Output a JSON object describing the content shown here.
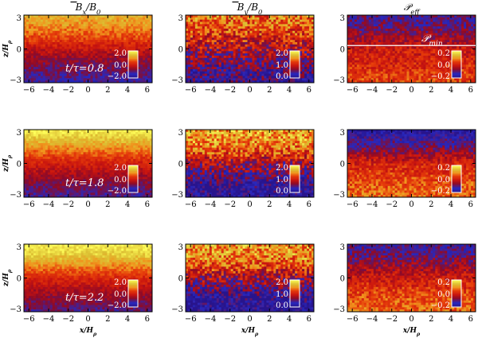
{
  "figure": {
    "column_titles": [
      "B̅x/B0",
      "B̅y/B0",
      "𝒫 eff"
    ],
    "column_titles_display": [
      {
        "main": "B",
        "sub": "x",
        "tail": "/B",
        "tailsub": "0",
        "bar": true
      },
      {
        "main": "B",
        "sub": "y",
        "tail": "/B",
        "tailsub": "0",
        "bar": true
      },
      {
        "main": "𝒫",
        "sub": "eff",
        "tail": "",
        "tailsub": "",
        "bar": false
      }
    ],
    "pmin_label": {
      "main": "𝒫",
      "sub": "min"
    },
    "xlabel": {
      "main": "x/H",
      "sub": "ρ"
    },
    "ylabel": {
      "main": "z/H",
      "sub": "ρ"
    },
    "xticks": [
      "−6",
      "−4",
      "−2",
      "0",
      "2",
      "4",
      "6"
    ],
    "yticks": [
      "3",
      "0",
      "−3"
    ],
    "time_labels": [
      "t/τ=0.8",
      "t/τ=1.8",
      "t/τ=2.2"
    ]
  },
  "chart_data": [
    {
      "type": "heatmap",
      "row": 0,
      "col": 0,
      "quantity": "Bx/B0",
      "time": 0.8,
      "xlim": [
        -6.5,
        6.5
      ],
      "ylim": [
        -3,
        3
      ],
      "colorbar": {
        "ticks": [
          "2.0",
          "0.0",
          "−2.0"
        ],
        "range": [
          -2,
          2
        ]
      },
      "profile_z": [
        -3,
        -2,
        -1,
        0,
        1,
        2,
        3
      ],
      "profile_value": [
        -1.3,
        -1.0,
        -0.7,
        -0.2,
        0.4,
        0.9,
        1.2
      ],
      "noise": 0.35
    },
    {
      "type": "heatmap",
      "row": 0,
      "col": 1,
      "quantity": "By/B0",
      "time": 0.8,
      "xlim": [
        -6.5,
        6.5
      ],
      "ylim": [
        -3,
        3
      ],
      "colorbar": {
        "ticks": [
          "2.0",
          "1.0",
          "0.0"
        ],
        "range": [
          0,
          2
        ]
      },
      "profile_z": [
        -3,
        -2,
        -1,
        0,
        1,
        2,
        3
      ],
      "profile_value": [
        0.2,
        0.35,
        0.55,
        0.8,
        1.05,
        1.25,
        1.35
      ],
      "noise": 0.45
    },
    {
      "type": "heatmap",
      "row": 0,
      "col": 2,
      "quantity": "Peff",
      "time": 0.8,
      "xlim": [
        -6.5,
        6.5
      ],
      "ylim": [
        -3,
        3
      ],
      "colorbar": {
        "ticks": [
          "0.2",
          "0.0",
          "−0.2"
        ],
        "range": [
          -0.2,
          0.2
        ]
      },
      "profile_z": [
        -3,
        -2,
        -1,
        0,
        1,
        2,
        3
      ],
      "profile_value": [
        0.04,
        0.02,
        0.0,
        -0.01,
        -0.06,
        -0.1,
        -0.12
      ],
      "noise": 0.05,
      "pmin_z": 0.3
    },
    {
      "type": "heatmap",
      "row": 1,
      "col": 0,
      "quantity": "Bx/B0",
      "time": 1.8,
      "xlim": [
        -6.5,
        6.5
      ],
      "ylim": [
        -3,
        3
      ],
      "colorbar": {
        "ticks": [
          "2.0",
          "0.0",
          "−2.0"
        ],
        "range": [
          -2,
          2
        ]
      },
      "profile_z": [
        -3,
        -2,
        -1,
        0,
        1,
        2,
        3
      ],
      "profile_value": [
        -1.2,
        -0.9,
        -0.5,
        0.0,
        0.6,
        1.3,
        1.9
      ],
      "noise": 0.3
    },
    {
      "type": "heatmap",
      "row": 1,
      "col": 1,
      "quantity": "By/B0",
      "time": 1.8,
      "xlim": [
        -6.5,
        6.5
      ],
      "ylim": [
        -3,
        3
      ],
      "colorbar": {
        "ticks": [
          "2.0",
          "1.0",
          "0.0"
        ],
        "range": [
          0,
          2
        ]
      },
      "profile_z": [
        -3,
        -2,
        -1,
        0,
        1,
        2,
        3
      ],
      "profile_value": [
        0.05,
        0.15,
        0.45,
        0.75,
        1.2,
        1.5,
        1.55
      ],
      "noise": 0.45
    },
    {
      "type": "heatmap",
      "row": 1,
      "col": 2,
      "quantity": "Peff",
      "time": 1.8,
      "xlim": [
        -6.5,
        6.5
      ],
      "ylim": [
        -3,
        3
      ],
      "colorbar": {
        "ticks": [
          "0.2",
          "0.0",
          "−0.2"
        ],
        "range": [
          -0.2,
          0.2
        ]
      },
      "profile_z": [
        -3,
        -2,
        -1,
        0,
        1,
        2,
        3
      ],
      "profile_value": [
        0.07,
        0.05,
        0.03,
        0.0,
        -0.07,
        -0.13,
        -0.18
      ],
      "noise": 0.05
    },
    {
      "type": "heatmap",
      "row": 2,
      "col": 0,
      "quantity": "Bx/B0",
      "time": 2.2,
      "xlim": [
        -6.5,
        6.5
      ],
      "ylim": [
        -3,
        3
      ],
      "colorbar": {
        "ticks": [
          "2.0",
          "0.0",
          "−2.0"
        ],
        "range": [
          -2,
          2
        ]
      },
      "profile_z": [
        -3,
        -2,
        -1,
        0,
        1,
        2,
        3
      ],
      "profile_value": [
        -1.1,
        -0.8,
        -0.4,
        0.1,
        0.8,
        1.5,
        1.9
      ],
      "noise": 0.3
    },
    {
      "type": "heatmap",
      "row": 2,
      "col": 1,
      "quantity": "By/B0",
      "time": 2.2,
      "xlim": [
        -6.5,
        6.5
      ],
      "ylim": [
        -3,
        3
      ],
      "colorbar": {
        "ticks": [
          "2.0",
          "1.0",
          "0.0"
        ],
        "range": [
          0,
          2
        ]
      },
      "profile_z": [
        -3,
        -2,
        -1,
        0,
        1,
        2,
        3
      ],
      "profile_value": [
        0.0,
        0.1,
        0.4,
        0.75,
        1.15,
        1.45,
        1.5
      ],
      "noise": 0.45
    },
    {
      "type": "heatmap",
      "row": 2,
      "col": 2,
      "quantity": "Peff",
      "time": 2.2,
      "xlim": [
        -6.5,
        6.5
      ],
      "ylim": [
        -3,
        3
      ],
      "colorbar": {
        "ticks": [
          "0.2",
          "0.0",
          "−0.2"
        ],
        "range": [
          -0.2,
          0.2
        ]
      },
      "profile_z": [
        -3,
        -2,
        -1,
        0,
        1,
        2,
        3
      ],
      "profile_value": [
        0.06,
        0.05,
        0.02,
        -0.01,
        -0.06,
        -0.1,
        -0.13
      ],
      "noise": 0.05
    }
  ],
  "colors": {
    "low": "#1a1aa0",
    "mid": "#e03010",
    "high": "#ffff60"
  }
}
